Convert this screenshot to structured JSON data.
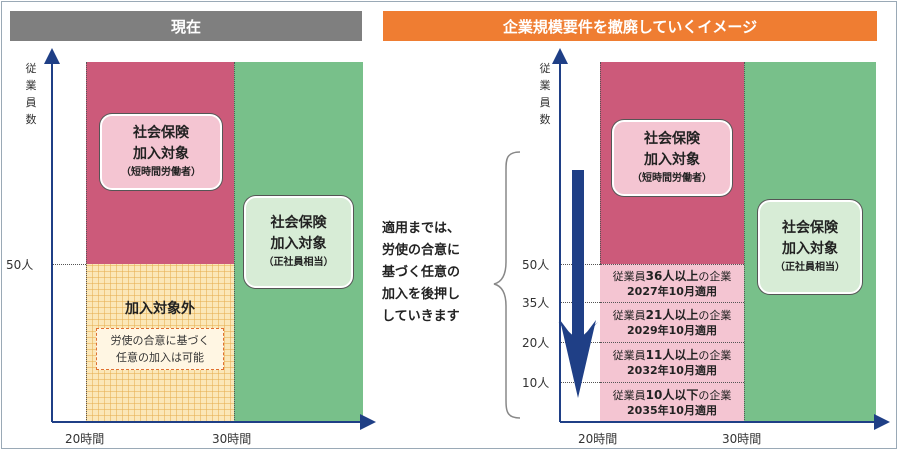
{
  "left_header": {
    "title": "現在",
    "color": "#7f7f7f"
  },
  "right_header": {
    "title": "企業規模要件を撤廃していくイメージ",
    "color": "#ef7d32"
  },
  "y_axis_label": [
    "従",
    "業",
    "員",
    "数"
  ],
  "left": {
    "tick_50": "50人",
    "x_20": "20時間",
    "x_30": "30時間",
    "insured_box": {
      "line1": "社会保険",
      "line2": "加入対象",
      "line3": "（短時間労働者）"
    },
    "regular_box": {
      "line1": "社会保険",
      "line2": "加入対象",
      "line3": "（正社員相当）"
    },
    "excluded": {
      "title": "加入対象外",
      "note_line1": "労使の合意に基づく",
      "note_line2": "任意の加入は可能"
    }
  },
  "middle_text": [
    "適用までは、",
    "労使の合意に",
    "基づく任意の",
    "加入を後押し",
    "していきます"
  ],
  "right": {
    "ticks": [
      "50人",
      "35人",
      "20人",
      "10人"
    ],
    "x_20": "20時間",
    "x_30": "30時間",
    "insured_box": {
      "line1": "社会保険",
      "line2": "加入対象",
      "line3": "（短時間労働者）"
    },
    "regular_box": {
      "line1": "社会保険",
      "line2": "加入対象",
      "line3": "（正社員相当）"
    },
    "phases": [
      {
        "pre": "従業員",
        "num": "36人以上",
        "post": "の企業",
        "date": "2027年10月適用"
      },
      {
        "pre": "従業員",
        "num": "21人以上",
        "post": "の企業",
        "date": "2029年10月適用"
      },
      {
        "pre": "従業員",
        "num": "11人以上",
        "post": "の企業",
        "date": "2032年10月適用"
      },
      {
        "pre": "従業員",
        "num": "10人以下",
        "post": "の企業",
        "date": "2035年10月適用"
      }
    ]
  },
  "colors": {
    "pink": "#cc5a7a",
    "green": "#78c08a",
    "axis": "#1f3f86",
    "arrow": "#1f3f86"
  }
}
